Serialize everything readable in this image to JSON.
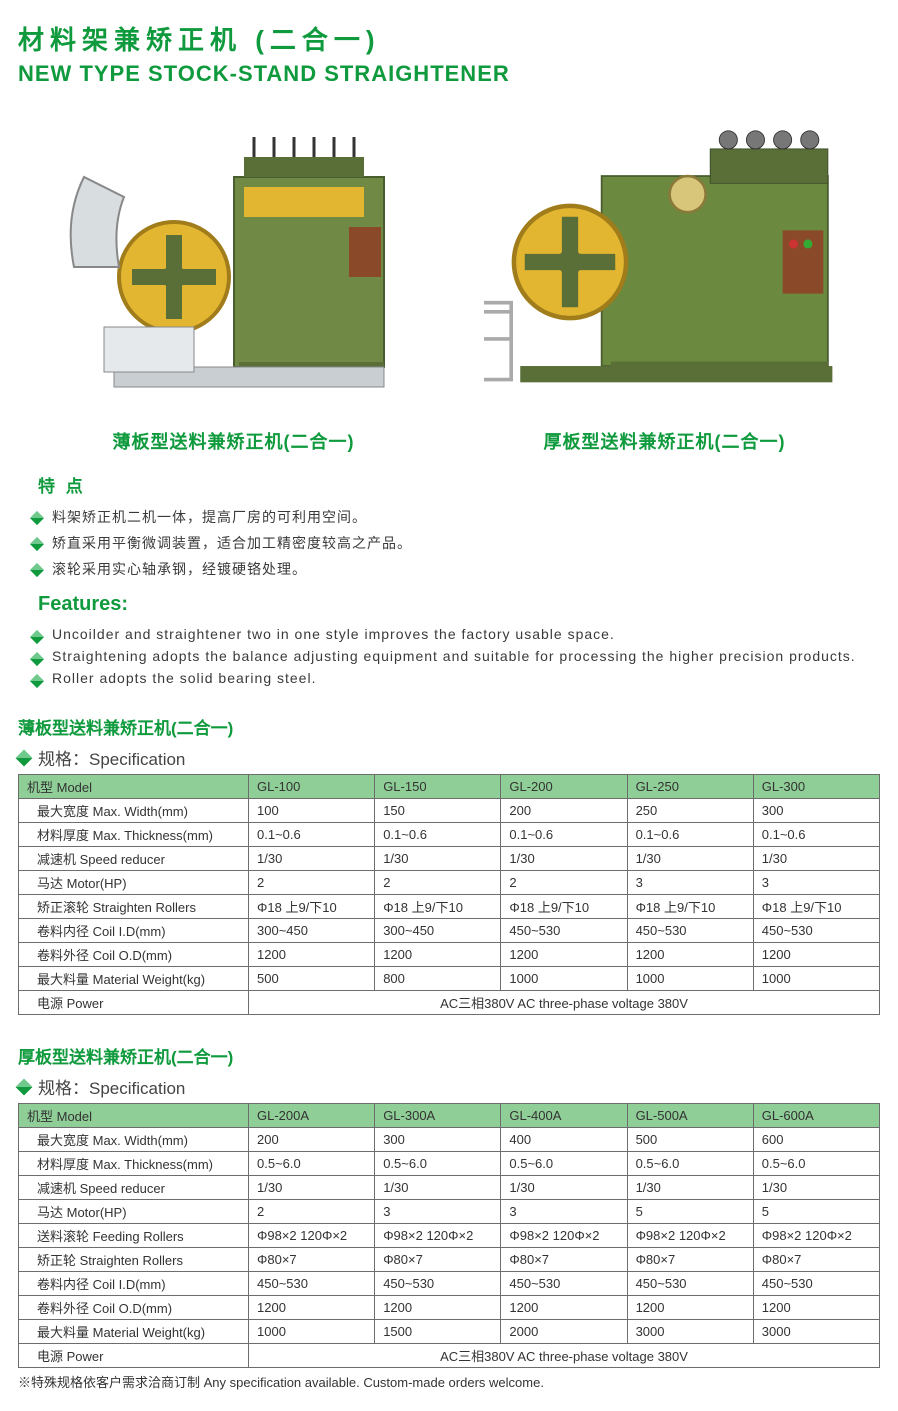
{
  "title_cn": "材料架兼矫正机 (二合一)",
  "title_en": "NEW TYPE STOCK-STAND STRAIGHTENER",
  "caption_left": "薄板型送料兼矫正机(二合一)",
  "caption_right": "厚板型送料兼矫正机(二合一)",
  "features_cn_header": "特 点",
  "features_cn": [
    "料架矫正机二机一体，提高厂房的可利用空间。",
    "矫直采用平衡微调装置，适合加工精密度较高之产品。",
    "滚轮采用实心轴承钢，经镀硬铬处理。"
  ],
  "features_en_header": "Features:",
  "features_en": [
    "Uncoilder and straightener two in one style improves the factory usable space.",
    "Straightening adopts the balance adjusting equipment and suitable for processing the higher precision products.",
    "Roller adopts the solid bearing steel."
  ],
  "table1": {
    "title": "薄板型送料兼矫正机(二合一)",
    "subtitle": "规格：Specification",
    "headers": [
      "机型 Model",
      "GL-100",
      "GL-150",
      "GL-200",
      "GL-250",
      "GL-300"
    ],
    "rows": [
      [
        "最大宽度 Max. Width(mm)",
        "100",
        "150",
        "200",
        "250",
        "300"
      ],
      [
        "材料厚度 Max. Thickness(mm)",
        "0.1~0.6",
        "0.1~0.6",
        "0.1~0.6",
        "0.1~0.6",
        "0.1~0.6"
      ],
      [
        "减速机 Speed reducer",
        "1/30",
        "1/30",
        "1/30",
        "1/30",
        "1/30"
      ],
      [
        "马达 Motor(HP)",
        "2",
        "2",
        "2",
        "3",
        "3"
      ],
      [
        "矫正滚轮 Straighten Rollers",
        "Φ18  上9/下10",
        "Φ18  上9/下10",
        "Φ18  上9/下10",
        "Φ18  上9/下10",
        "Φ18  上9/下10"
      ],
      [
        "卷料内径 Coil I.D(mm)",
        "300~450",
        "300~450",
        "450~530",
        "450~530",
        "450~530"
      ],
      [
        "卷料外径 Coil O.D(mm)",
        "1200",
        "1200",
        "1200",
        "1200",
        "1200"
      ],
      [
        "最大料量 Material Weight(kg)",
        "500",
        "800",
        "1000",
        "1000",
        "1000"
      ]
    ],
    "power_label": "电源 Power",
    "power_value": "AC三相380V   AC three-phase voltage 380V"
  },
  "table2": {
    "title": "厚板型送料兼矫正机(二合一)",
    "subtitle": "规格：Specification",
    "headers": [
      "机型 Model",
      "GL-200A",
      "GL-300A",
      "GL-400A",
      "GL-500A",
      "GL-600A"
    ],
    "rows": [
      [
        "最大宽度 Max. Width(mm)",
        "200",
        "300",
        "400",
        "500",
        "600"
      ],
      [
        "材料厚度 Max. Thickness(mm)",
        "0.5~6.0",
        "0.5~6.0",
        "0.5~6.0",
        "0.5~6.0",
        "0.5~6.0"
      ],
      [
        "减速机 Speed reducer",
        "1/30",
        "1/30",
        "1/30",
        "1/30",
        "1/30"
      ],
      [
        "马达 Motor(HP)",
        "2",
        "3",
        "3",
        "5",
        "5"
      ],
      [
        "送料滚轮 Feeding Rollers",
        "Φ98×2   120Φ×2",
        "Φ98×2   120Φ×2",
        "Φ98×2   120Φ×2",
        "Φ98×2   120Φ×2",
        "Φ98×2   120Φ×2"
      ],
      [
        "矫正轮 Straighten Rollers",
        "Φ80×7",
        "Φ80×7",
        "Φ80×7",
        "Φ80×7",
        "Φ80×7"
      ],
      [
        "卷料内径 Coil I.D(mm)",
        "450~530",
        "450~530",
        "450~530",
        "450~530",
        "450~530"
      ],
      [
        "卷料外径 Coil O.D(mm)",
        "1200",
        "1200",
        "1200",
        "1200",
        "1200"
      ],
      [
        "最大料量 Material Weight(kg)",
        "1000",
        "1500",
        "2000",
        "3000",
        "3000"
      ]
    ],
    "power_label": "电源 Power",
    "power_value": "AC三相380V   AC three-phase voltage 380V"
  },
  "footer": "※特殊规格依客户需求洽商订制   Any specification available. Custom-made orders welcome.",
  "colors": {
    "brand_green": "#0f9a3d",
    "table_header_bg": "#8fce97",
    "machine_green": "#6b8a3f",
    "machine_yellow": "#e3b632",
    "border": "#6d6d6d"
  }
}
